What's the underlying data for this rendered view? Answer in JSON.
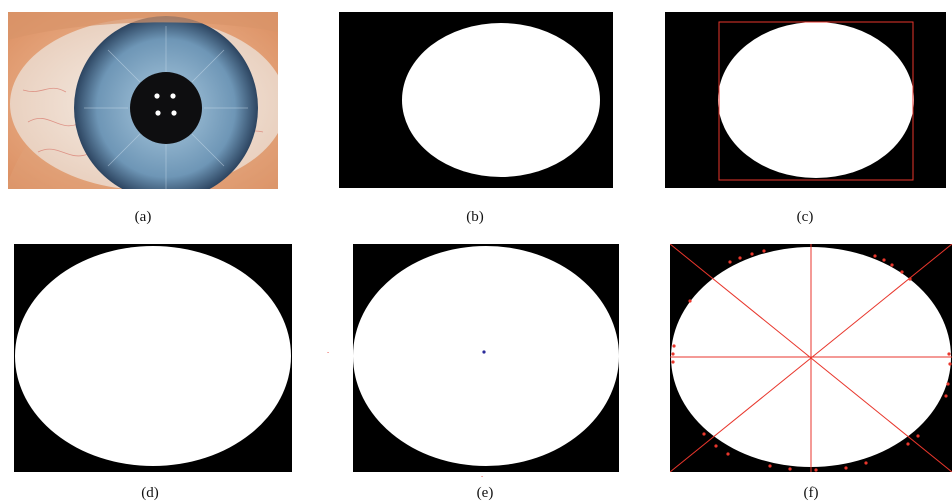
{
  "captions": {
    "a": "(a)",
    "b": "(b)",
    "c": "(c)",
    "d": "(d)",
    "e": "(e)",
    "f": "(f)"
  },
  "colors": {
    "background": "#000000",
    "iris_region": "#ffffff",
    "annotation_red": "#e8362c",
    "center_marker_blue": "#2b2b9a",
    "iris_blue": "#7fa6c4",
    "sclera": "#efe7df",
    "skin": "#e9a27a"
  }
}
